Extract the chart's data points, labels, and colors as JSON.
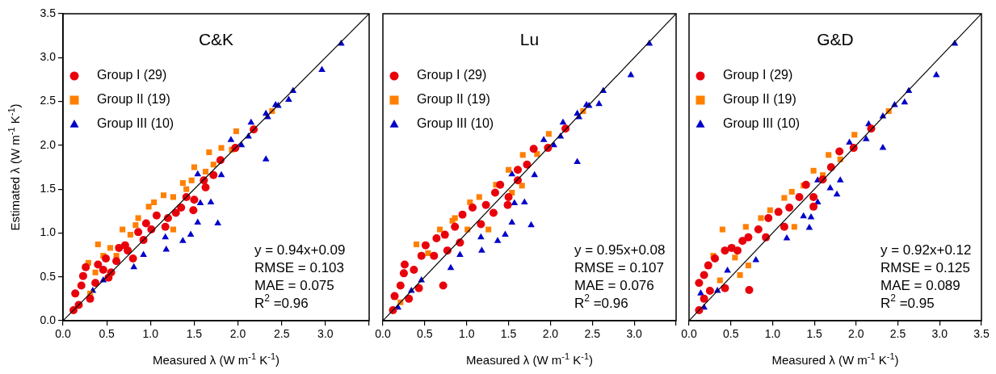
{
  "chart_data": [
    {
      "type": "scatter",
      "title": "C&K",
      "xlabel": "Measured λ (W m$^{-1}$ K$^{-1}$)",
      "ylabel": "Estimated λ (W m$^{-1}$ K$^{-1}$)",
      "xlim": [
        0,
        3.5
      ],
      "ylim": [
        0,
        3.5
      ],
      "xticks": [
        {
          "value": 0,
          "label": "0.0"
        },
        {
          "value": 0.5,
          "label": "0.5"
        },
        {
          "value": 1,
          "label": "1.0"
        },
        {
          "value": 1.5,
          "label": "1.5"
        },
        {
          "value": 2,
          "label": "2.0"
        },
        {
          "value": 2.5,
          "label": "2.5"
        },
        {
          "value": 3,
          "label": "3.0"
        },
        {
          "value": 3.5,
          "label": null
        }
      ],
      "yticks": [
        {
          "value": 0,
          "label": "0.0"
        },
        {
          "value": 0.5,
          "label": "0.5"
        },
        {
          "value": 1,
          "label": "1.0"
        },
        {
          "value": 1.5,
          "label": "1.5"
        },
        {
          "value": 2,
          "label": "2.0"
        },
        {
          "value": 2.5,
          "label": "2.5"
        },
        {
          "value": 3,
          "label": "3.0"
        },
        {
          "value": 3.5,
          "label": "3.5"
        }
      ],
      "legend": "top left",
      "grid": false,
      "annotations": [
        "y = 0.94x+0.09",
        "RMSE = 0.103",
        "MAE = 0.075",
        "R$^{2}$ =0.96"
      ],
      "series": [
        {
          "name": "Group I (29)",
          "color": "#e8000b",
          "marker": "circle",
          "x": [
            2.18,
            1.97,
            1.8,
            1.72,
            1.61,
            1.63,
            1.49,
            1.5,
            1.41,
            1.29,
            1.2,
            1.07,
            0.95,
            1.01,
            0.86,
            0.71,
            0.64,
            0.74,
            0.8,
            0.49,
            0.4,
            0.26,
            0.52,
            0.23,
            0.37,
            0.14,
            0.21,
            0.31,
            0.12,
            0.18,
            0.46,
            0.61,
            1.17,
            1.35,
            0.92,
            0.55
          ],
          "values": [
            2.18,
            1.97,
            1.83,
            1.66,
            1.6,
            1.52,
            1.26,
            1.38,
            1.41,
            1.23,
            1.17,
            1.2,
            1.11,
            1.04,
            1.01,
            0.86,
            0.83,
            0.8,
            0.71,
            0.71,
            0.64,
            0.61,
            0.49,
            0.51,
            0.43,
            0.31,
            0.4,
            0.25,
            0.12,
            0.18,
            0.58,
            0.68,
            1.07,
            1.29,
            0.92,
            0.55
          ]
        },
        {
          "name": "Group II (19)",
          "color": "#ff8000",
          "marker": "square",
          "x": [
            1.98,
            2.39,
            1.81,
            1.67,
            1.5,
            1.63,
            1.37,
            1.15,
            1.26,
            0.98,
            1.04,
            0.86,
            0.83,
            0.68,
            0.77,
            0.4,
            0.54,
            0.29,
            1.26,
            1.93,
            1.72,
            1.47,
            0.61,
            0.37,
            0.31,
            1.41,
            0.46
          ],
          "values": [
            2.16,
            2.39,
            1.97,
            1.92,
            1.75,
            1.7,
            1.57,
            1.43,
            1.41,
            1.3,
            1.35,
            1.17,
            1.09,
            1.04,
            0.98,
            0.87,
            0.83,
            0.66,
            1.04,
            1.95,
            1.78,
            1.6,
            0.74,
            0.55,
            0.31,
            1.5,
            0.74
          ]
        },
        {
          "name": "Group III (10)",
          "color": "#0000c8",
          "marker": "triangle",
          "x": [
            3.18,
            2.96,
            2.63,
            2.58,
            2.46,
            2.43,
            2.32,
            2.34,
            2.15,
            2.32,
            2.12,
            1.92,
            2.04,
            1.81,
            1.54,
            1.69,
            1.57,
            1.77,
            1.54,
            1.46,
            1.37,
            1.18,
            0.81,
            1.17,
            0.92,
            0.46,
            0.34
          ],
          "values": [
            3.16,
            2.86,
            2.62,
            2.52,
            2.45,
            2.46,
            2.36,
            2.32,
            2.26,
            1.84,
            2.1,
            2.06,
            2.0,
            1.66,
            1.67,
            1.35,
            1.34,
            1.11,
            1.12,
            0.98,
            0.91,
            0.81,
            0.61,
            0.95,
            0.75,
            0.46,
            0.34
          ]
        },
        {
          "type": "line",
          "color": "#000000",
          "x": [
            0,
            3.5
          ],
          "values": [
            0,
            3.5
          ]
        }
      ]
    },
    {
      "type": "scatter",
      "title": "Lu",
      "xlabel": "Measured λ (W m$^{-1}$ K$^{-1}$)",
      "xlim": [
        0,
        3.5
      ],
      "ylim": [
        0,
        3.5
      ],
      "tick_labels": "x",
      "xticks": [
        {
          "value": 0,
          "label": "0.0"
        },
        {
          "value": 0.5,
          "label": "0.5"
        },
        {
          "value": 1,
          "label": "1.0"
        },
        {
          "value": 1.5,
          "label": "1.5"
        },
        {
          "value": 2,
          "label": "2.0"
        },
        {
          "value": 2.5,
          "label": "2.5"
        },
        {
          "value": 3,
          "label": "3.0"
        },
        {
          "value": 3.5,
          "label": null
        }
      ],
      "legend": "top left",
      "grid": false,
      "annotations": [
        "y = 0.95x+0.08",
        "RMSE = 0.107",
        "MAE = 0.076",
        "R$^{2}$ =0.96"
      ],
      "series": [
        {
          "name": "Group I (29)",
          "color": "#e8000b",
          "marker": "circle",
          "x": [
            2.18,
            1.97,
            1.8,
            1.72,
            1.61,
            1.61,
            1.49,
            1.5,
            1.4,
            1.34,
            1.23,
            1.07,
            0.95,
            0.86,
            0.74,
            0.64,
            0.51,
            0.46,
            0.26,
            0.25,
            0.21,
            0.14,
            0.72,
            0.43,
            0.31,
            0.12,
            1.17,
            0.92,
            0.61,
            0.37,
            0.77,
            1.32
          ],
          "values": [
            2.19,
            1.97,
            1.96,
            1.78,
            1.72,
            1.6,
            1.32,
            1.41,
            1.55,
            1.46,
            1.32,
            1.29,
            1.21,
            1.07,
            0.98,
            0.94,
            0.86,
            0.74,
            0.64,
            0.54,
            0.4,
            0.28,
            0.4,
            0.37,
            0.25,
            0.12,
            1.1,
            0.89,
            0.74,
            0.58,
            0.8,
            1.23
          ]
        },
        {
          "name": "Group II (19)",
          "color": "#ff8000",
          "marker": "square",
          "x": [
            1.98,
            2.39,
            1.67,
            1.5,
            1.35,
            1.15,
            1.04,
            0.86,
            0.68,
            0.4,
            1.26,
            1.84,
            1.66,
            1.54,
            0.83,
            0.54,
            0.21,
            1.01
          ],
          "values": [
            2.13,
            2.39,
            1.89,
            1.72,
            1.55,
            1.41,
            1.35,
            1.17,
            1.04,
            0.87,
            1.04,
            1.9,
            1.54,
            1.46,
            1.14,
            0.77,
            0.21,
            1.04
          ]
        },
        {
          "name": "Group III (10)",
          "color": "#0000c8",
          "marker": "triangle",
          "x": [
            3.18,
            2.96,
            2.63,
            2.58,
            2.46,
            2.43,
            2.32,
            2.34,
            2.15,
            2.32,
            2.12,
            1.92,
            2.04,
            1.81,
            1.54,
            1.69,
            1.57,
            1.77,
            1.54,
            1.46,
            1.37,
            1.18,
            0.81,
            1.17,
            0.92,
            0.46,
            0.34,
            0.18
          ],
          "values": [
            3.16,
            2.8,
            2.62,
            2.47,
            2.45,
            2.46,
            2.36,
            2.32,
            2.26,
            1.81,
            2.1,
            2.06,
            2.0,
            1.66,
            1.67,
            1.35,
            1.34,
            1.09,
            1.12,
            0.98,
            0.91,
            0.8,
            0.6,
            0.95,
            0.75,
            0.46,
            0.34,
            0.15
          ]
        },
        {
          "type": "line",
          "color": "#000000",
          "x": [
            0,
            3.5
          ],
          "values": [
            0,
            3.5
          ]
        }
      ]
    },
    {
      "type": "scatter",
      "title": "G&D",
      "xlabel": "Measured λ (W m$^{-1}$ K$^{-1}$)",
      "xlim": [
        0,
        3.5
      ],
      "ylim": [
        0,
        3.5
      ],
      "tick_labels": "x",
      "xticks": [
        {
          "value": 0,
          "label": "0.0"
        },
        {
          "value": 0.5,
          "label": "0.5"
        },
        {
          "value": 1,
          "label": "1.0"
        },
        {
          "value": 1.5,
          "label": "1.5"
        },
        {
          "value": 2,
          "label": "2.0"
        },
        {
          "value": 2.5,
          "label": "2.5"
        },
        {
          "value": 3,
          "label": "3.0"
        },
        {
          "value": 3.5,
          "label": "3.5"
        }
      ],
      "legend": "top left",
      "grid": false,
      "annotations": [
        "y = 0.92x+0.12",
        "RMSE = 0.125",
        "MAE = 0.089",
        "R$^{2}$ =0.95"
      ],
      "series": [
        {
          "name": "Group I (29)",
          "color": "#e8000b",
          "marker": "circle",
          "x": [
            2.18,
            1.97,
            1.8,
            1.7,
            1.6,
            1.4,
            1.49,
            1.49,
            1.32,
            1.2,
            1.07,
            0.95,
            0.83,
            0.71,
            0.64,
            0.51,
            0.43,
            0.31,
            0.23,
            0.18,
            0.12,
            0.25,
            0.72,
            0.43,
            0.18,
            0.12,
            1.14,
            0.92,
            0.58
          ],
          "values": [
            2.19,
            1.97,
            1.93,
            1.75,
            1.61,
            1.55,
            1.41,
            1.3,
            1.41,
            1.29,
            1.24,
            1.17,
            1.04,
            0.95,
            0.91,
            0.83,
            0.8,
            0.71,
            0.63,
            0.52,
            0.43,
            0.34,
            0.35,
            0.37,
            0.25,
            0.12,
            1.07,
            0.95,
            0.8
          ]
        },
        {
          "name": "Group II (19)",
          "color": "#ff8000",
          "marker": "square",
          "x": [
            1.98,
            2.39,
            1.67,
            1.49,
            1.37,
            1.23,
            1.14,
            0.97,
            0.86,
            0.68,
            0.4,
            0.29,
            1.26,
            1.81,
            0.71,
            0.61,
            0.37,
            0.55,
            1.6
          ],
          "values": [
            2.12,
            2.39,
            1.89,
            1.71,
            1.54,
            1.47,
            1.4,
            1.26,
            1.17,
            1.07,
            1.04,
            0.74,
            1.07,
            1.84,
            0.63,
            0.52,
            0.46,
            0.72,
            1.66
          ]
        },
        {
          "name": "Group III (10)",
          "color": "#0000c8",
          "marker": "triangle",
          "x": [
            3.18,
            2.96,
            2.63,
            2.58,
            2.46,
            2.32,
            2.15,
            2.32,
            2.12,
            1.92,
            1.81,
            1.54,
            1.69,
            1.77,
            1.54,
            1.46,
            1.37,
            1.17,
            1.44,
            0.8,
            0.46,
            0.34,
            0.18,
            0.14
          ],
          "values": [
            3.16,
            2.8,
            2.62,
            2.49,
            2.46,
            2.33,
            2.24,
            1.97,
            2.07,
            2.03,
            1.6,
            1.6,
            1.51,
            1.44,
            1.35,
            1.18,
            1.19,
            0.94,
            1.06,
            0.69,
            0.57,
            0.34,
            0.15,
            0.31
          ]
        },
        {
          "type": "line",
          "color": "#000000",
          "x": [
            0,
            3.5
          ],
          "values": [
            0,
            3.5
          ]
        }
      ]
    }
  ]
}
